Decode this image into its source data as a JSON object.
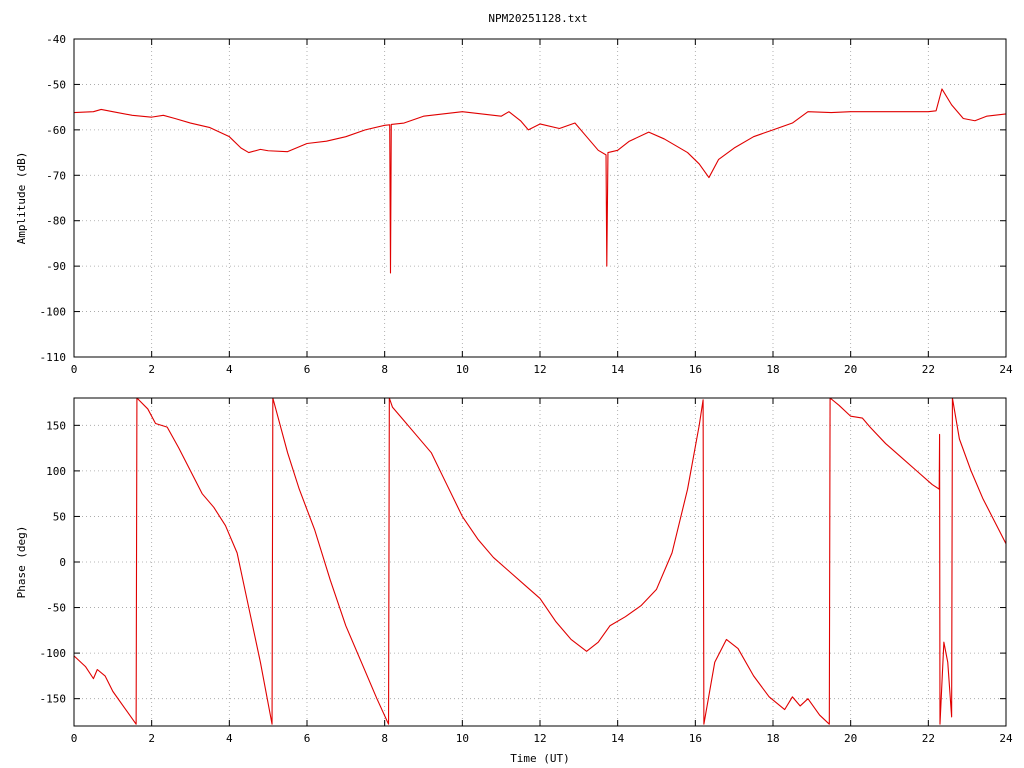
{
  "title": "NPM20251128.txt",
  "colors": {
    "series": "#e00000",
    "axis": "#000000",
    "grid": "#a0a0a0",
    "background": "#ffffff"
  },
  "chart_data": [
    {
      "type": "line",
      "ylabel": "Amplitude (dB)",
      "xlabel": "",
      "xlim": [
        0,
        24
      ],
      "ylim": [
        -110,
        -40
      ],
      "x_ticks": [
        0,
        2,
        4,
        6,
        8,
        10,
        12,
        14,
        16,
        18,
        20,
        22,
        24
      ],
      "y_ticks": [
        -40,
        -50,
        -60,
        -70,
        -80,
        -90,
        -100,
        -110
      ],
      "x_tick_labels": [
        "0",
        "2",
        "4",
        "6",
        "8",
        "10",
        "12",
        "14",
        "16",
        "18",
        "20",
        "22",
        "24"
      ],
      "y_tick_labels": [
        "-40",
        "-50",
        "-60",
        "-70",
        "-80",
        "-90",
        "-100",
        "-110"
      ],
      "grid": true,
      "series": [
        {
          "color": "#e00000",
          "points": [
            [
              0,
              -56.2
            ],
            [
              0.5,
              -56
            ],
            [
              0.7,
              -55.5
            ],
            [
              1,
              -56
            ],
            [
              1.5,
              -56.8
            ],
            [
              2,
              -57.2
            ],
            [
              2.3,
              -56.8
            ],
            [
              2.6,
              -57.5
            ],
            [
              3,
              -58.5
            ],
            [
              3.5,
              -59.5
            ],
            [
              4,
              -61.5
            ],
            [
              4.3,
              -64
            ],
            [
              4.5,
              -65
            ],
            [
              4.8,
              -64.3
            ],
            [
              5,
              -64.6
            ],
            [
              5.5,
              -64.8
            ],
            [
              6,
              -63
            ],
            [
              6.5,
              -62.5
            ],
            [
              7,
              -61.5
            ],
            [
              7.5,
              -60
            ],
            [
              8,
              -59
            ],
            [
              8.13,
              -58.9
            ],
            [
              8.15,
              -91.5
            ],
            [
              8.17,
              -58.8
            ],
            [
              8.5,
              -58.5
            ],
            [
              9,
              -57
            ],
            [
              9.5,
              -56.5
            ],
            [
              10,
              -56
            ],
            [
              10.5,
              -56.5
            ],
            [
              11,
              -57
            ],
            [
              11.2,
              -56
            ],
            [
              11.5,
              -58
            ],
            [
              11.7,
              -60
            ],
            [
              12,
              -58.7
            ],
            [
              12.5,
              -59.7
            ],
            [
              12.9,
              -58.5
            ],
            [
              13.2,
              -61.5
            ],
            [
              13.5,
              -64.5
            ],
            [
              13.7,
              -65.5
            ],
            [
              13.72,
              -90
            ],
            [
              13.75,
              -65
            ],
            [
              14,
              -64.5
            ],
            [
              14.3,
              -62.5
            ],
            [
              14.8,
              -60.5
            ],
            [
              15.2,
              -62
            ],
            [
              15.8,
              -65
            ],
            [
              16.1,
              -67.5
            ],
            [
              16.35,
              -70.5
            ],
            [
              16.6,
              -66.5
            ],
            [
              17,
              -64
            ],
            [
              17.5,
              -61.5
            ],
            [
              18,
              -60
            ],
            [
              18.5,
              -58.5
            ],
            [
              18.9,
              -56
            ],
            [
              19.5,
              -56.2
            ],
            [
              20,
              -56
            ],
            [
              20.5,
              -56
            ],
            [
              21,
              -56
            ],
            [
              21.5,
              -56
            ],
            [
              22,
              -56
            ],
            [
              22.2,
              -55.8
            ],
            [
              22.35,
              -51
            ],
            [
              22.6,
              -54.5
            ],
            [
              22.9,
              -57.5
            ],
            [
              23.2,
              -58
            ],
            [
              23.5,
              -57
            ],
            [
              24,
              -56.5
            ]
          ]
        }
      ]
    },
    {
      "type": "line",
      "ylabel": "Phase (deg)",
      "xlabel": "Time (UT)",
      "xlim": [
        0,
        24
      ],
      "ylim": [
        -180,
        180
      ],
      "x_ticks": [
        0,
        2,
        4,
        6,
        8,
        10,
        12,
        14,
        16,
        18,
        20,
        22,
        24
      ],
      "y_ticks": [
        150,
        100,
        50,
        0,
        -50,
        -100,
        -150
      ],
      "x_tick_labels": [
        "0",
        "2",
        "4",
        "6",
        "8",
        "10",
        "12",
        "14",
        "16",
        "18",
        "20",
        "22",
        "24"
      ],
      "y_tick_labels": [
        "150",
        "100",
        "50",
        "0",
        "-50",
        "-100",
        "-150"
      ],
      "grid": true,
      "series": [
        {
          "color": "#e00000",
          "points": [
            [
              0,
              -103
            ],
            [
              0.3,
              -115
            ],
            [
              0.5,
              -128
            ],
            [
              0.6,
              -118
            ],
            [
              0.8,
              -125
            ],
            [
              1,
              -142
            ],
            [
              1.3,
              -160
            ],
            [
              1.6,
              -178
            ],
            [
              1.62,
              180
            ],
            [
              1.9,
              168
            ],
            [
              2.1,
              152
            ],
            [
              2.4,
              148
            ],
            [
              2.7,
              125
            ],
            [
              3,
              100
            ],
            [
              3.3,
              75
            ],
            [
              3.6,
              60
            ],
            [
              3.9,
              40
            ],
            [
              4.2,
              10
            ],
            [
              4.5,
              -50
            ],
            [
              4.8,
              -110
            ],
            [
              5.1,
              -178
            ],
            [
              5.12,
              180
            ],
            [
              5.5,
              120
            ],
            [
              5.8,
              80
            ],
            [
              6.2,
              35
            ],
            [
              6.6,
              -20
            ],
            [
              7,
              -70
            ],
            [
              7.4,
              -110
            ],
            [
              7.8,
              -150
            ],
            [
              8.1,
              -178
            ],
            [
              8.12,
              180
            ],
            [
              8.2,
              170
            ],
            [
              8.5,
              155
            ],
            [
              8.8,
              140
            ],
            [
              9.2,
              120
            ],
            [
              9.6,
              85
            ],
            [
              10,
              50
            ],
            [
              10.4,
              25
            ],
            [
              10.8,
              5
            ],
            [
              11.2,
              -10
            ],
            [
              11.6,
              -25
            ],
            [
              12,
              -40
            ],
            [
              12.4,
              -65
            ],
            [
              12.8,
              -85
            ],
            [
              13.2,
              -98
            ],
            [
              13.5,
              -88
            ],
            [
              13.8,
              -70
            ],
            [
              14.2,
              -60
            ],
            [
              14.6,
              -48
            ],
            [
              15,
              -30
            ],
            [
              15.4,
              10
            ],
            [
              15.8,
              80
            ],
            [
              16.1,
              150
            ],
            [
              16.2,
              178
            ],
            [
              16.22,
              -178
            ],
            [
              16.5,
              -110
            ],
            [
              16.8,
              -85
            ],
            [
              17.1,
              -95
            ],
            [
              17.5,
              -125
            ],
            [
              17.9,
              -148
            ],
            [
              18.3,
              -162
            ],
            [
              18.5,
              -148
            ],
            [
              18.7,
              -158
            ],
            [
              18.9,
              -150
            ],
            [
              19.2,
              -168
            ],
            [
              19.45,
              -178
            ],
            [
              19.47,
              180
            ],
            [
              19.7,
              172
            ],
            [
              20,
              160
            ],
            [
              20.3,
              158
            ],
            [
              20.5,
              148
            ],
            [
              20.9,
              130
            ],
            [
              21.3,
              115
            ],
            [
              21.7,
              100
            ],
            [
              22.1,
              85
            ],
            [
              22.28,
              80
            ],
            [
              22.29,
              140
            ],
            [
              22.3,
              -178
            ],
            [
              22.4,
              -88
            ],
            [
              22.5,
              -110
            ],
            [
              22.6,
              -170
            ],
            [
              22.62,
              180
            ],
            [
              22.8,
              135
            ],
            [
              23.1,
              100
            ],
            [
              23.4,
              70
            ],
            [
              23.7,
              45
            ],
            [
              24,
              20
            ]
          ]
        }
      ]
    }
  ]
}
